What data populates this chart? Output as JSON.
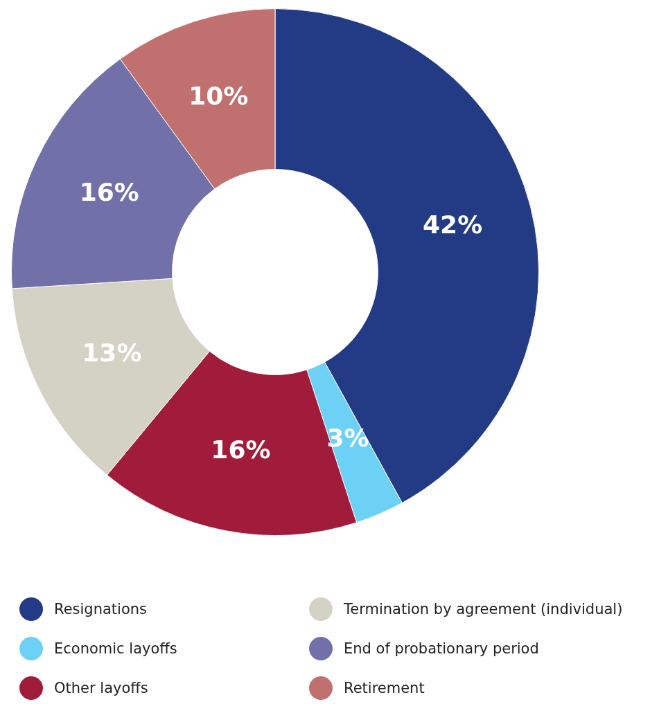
{
  "chart_data": {
    "type": "donut",
    "categories": [
      "Resignations",
      "Economic layoffs",
      "Other layoffs",
      "Termination by agreement (individual)",
      "End of probationary period",
      "Retirement"
    ],
    "values": [
      42,
      3,
      16,
      13,
      16,
      10
    ],
    "colors": [
      "#233a84",
      "#6dd0f5",
      "#a01c3a",
      "#d4d2c4",
      "#7170a8",
      "#c0706e"
    ],
    "value_labels": [
      "42%",
      "3%",
      "16%",
      "13%",
      "16%",
      "10%"
    ],
    "legend": "bottom"
  }
}
